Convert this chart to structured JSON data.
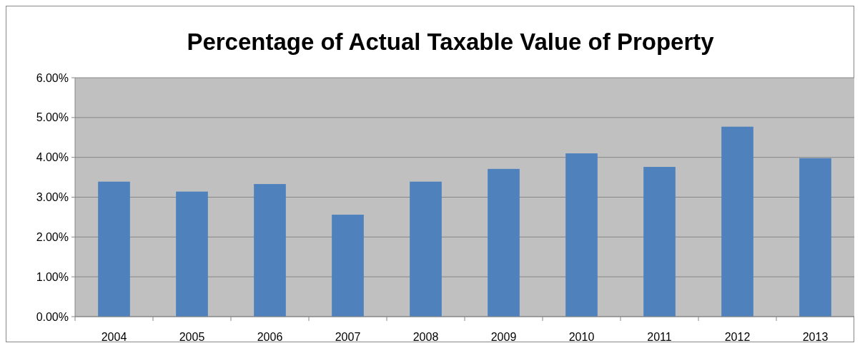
{
  "chart_data": {
    "type": "bar",
    "title": "Percentage of Actual Taxable Value of Property",
    "categories": [
      "2004",
      "2005",
      "2006",
      "2007",
      "2008",
      "2009",
      "2010",
      "2011",
      "2012",
      "2013"
    ],
    "values": [
      3.39,
      3.14,
      3.33,
      2.56,
      3.39,
      3.71,
      4.1,
      3.76,
      4.77,
      3.98
    ],
    "color": "#4f81bd",
    "ylim": [
      0,
      6
    ],
    "yticks": [
      {
        "value": 0,
        "label": "0.00%"
      },
      {
        "value": 1,
        "label": "1.00%"
      },
      {
        "value": 2,
        "label": "2.00%"
      },
      {
        "value": 3,
        "label": "3.00%"
      },
      {
        "value": 4,
        "label": "4.00%"
      },
      {
        "value": 5,
        "label": "5.00%"
      },
      {
        "value": 6,
        "label": "6.00%"
      }
    ],
    "grid": "y"
  }
}
